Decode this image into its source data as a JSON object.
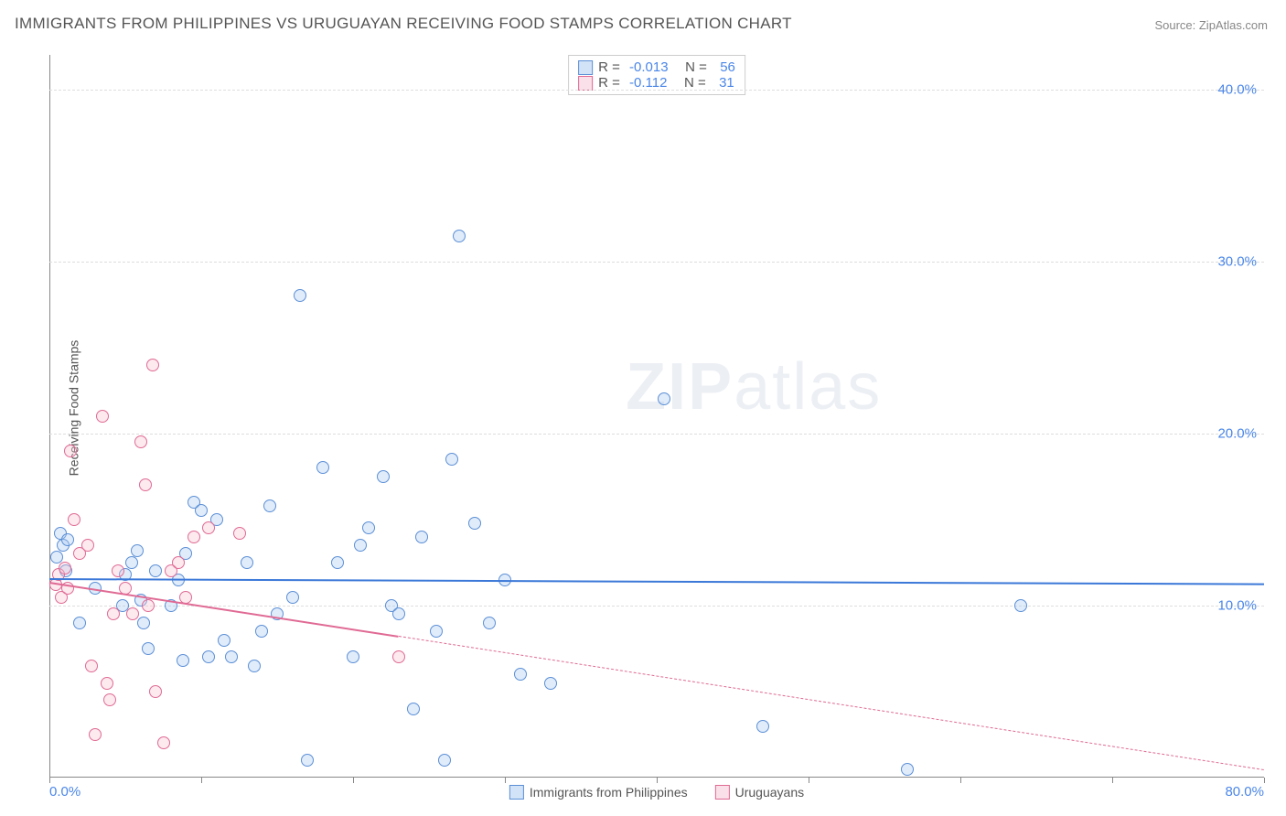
{
  "title": "IMMIGRANTS FROM PHILIPPINES VS URUGUAYAN RECEIVING FOOD STAMPS CORRELATION CHART",
  "source_prefix": "Source: ",
  "source": "ZipAtlas.com",
  "ylabel": "Receiving Food Stamps",
  "watermark_a": "ZIP",
  "watermark_b": "atlas",
  "chart": {
    "type": "scatter",
    "background_color": "#ffffff",
    "grid_color": "#dddddd",
    "axis_color": "#888888",
    "tick_label_color": "#4a86e8",
    "tick_fontsize": 15,
    "xlim": [
      0,
      80
    ],
    "ylim": [
      0,
      42
    ],
    "xticks": [
      0,
      10,
      20,
      30,
      40,
      50,
      60,
      70,
      80
    ],
    "xtick_labels_shown": {
      "0": "0.0%",
      "80": "80.0%"
    },
    "ygrid": [
      10,
      20,
      30,
      40
    ],
    "ytick_labels": [
      "10.0%",
      "20.0%",
      "30.0%",
      "40.0%"
    ],
    "point_radius": 7,
    "point_border_width": 1,
    "point_fill_opacity": 0.35,
    "series": [
      {
        "name": "Immigrants from Philippines",
        "color_fill": "#a8c8f0",
        "color_stroke": "#5b8fd6",
        "R": "-0.013",
        "N": "56",
        "trend": {
          "x0": 0,
          "y0": 11.6,
          "x1": 80,
          "y1": 11.3,
          "solid_until_x": 80,
          "color": "#3b78d8"
        },
        "points": [
          [
            0.5,
            12.8
          ],
          [
            0.7,
            14.2
          ],
          [
            0.9,
            13.5
          ],
          [
            1.1,
            12.0
          ],
          [
            1.2,
            13.8
          ],
          [
            2.0,
            9.0
          ],
          [
            3.0,
            11.0
          ],
          [
            4.8,
            10.0
          ],
          [
            5.0,
            11.8
          ],
          [
            5.4,
            12.5
          ],
          [
            5.8,
            13.2
          ],
          [
            6.0,
            10.3
          ],
          [
            6.2,
            9.0
          ],
          [
            6.5,
            7.5
          ],
          [
            7.0,
            12.0
          ],
          [
            8.0,
            10.0
          ],
          [
            8.5,
            11.5
          ],
          [
            9.0,
            13.0
          ],
          [
            9.5,
            16.0
          ],
          [
            10.0,
            15.5
          ],
          [
            10.5,
            7.0
          ],
          [
            11.0,
            15.0
          ],
          [
            11.5,
            8.0
          ],
          [
            12.0,
            7.0
          ],
          [
            13.0,
            12.5
          ],
          [
            14.0,
            8.5
          ],
          [
            14.5,
            15.8
          ],
          [
            15.0,
            9.5
          ],
          [
            16.0,
            10.5
          ],
          [
            16.5,
            28.0
          ],
          [
            17.0,
            1.0
          ],
          [
            18.0,
            18.0
          ],
          [
            19.0,
            12.5
          ],
          [
            20.0,
            7.0
          ],
          [
            20.5,
            13.5
          ],
          [
            21.0,
            14.5
          ],
          [
            22.0,
            17.5
          ],
          [
            22.5,
            10.0
          ],
          [
            23.0,
            9.5
          ],
          [
            24.0,
            4.0
          ],
          [
            24.5,
            14.0
          ],
          [
            25.5,
            8.5
          ],
          [
            26.0,
            1.0
          ],
          [
            26.5,
            18.5
          ],
          [
            27.0,
            31.5
          ],
          [
            28.0,
            14.8
          ],
          [
            29.0,
            9.0
          ],
          [
            30.0,
            11.5
          ],
          [
            31.0,
            6.0
          ],
          [
            33.0,
            5.5
          ],
          [
            40.5,
            22.0
          ],
          [
            47.0,
            3.0
          ],
          [
            64.0,
            10.0
          ],
          [
            56.5,
            0.5
          ],
          [
            8.8,
            6.8
          ],
          [
            13.5,
            6.5
          ]
        ]
      },
      {
        "name": "Uruguayans",
        "color_fill": "#f5c2d1",
        "color_stroke": "#e06a94",
        "R": "-0.112",
        "N": "31",
        "trend": {
          "x0": 0,
          "y0": 11.4,
          "x1": 80,
          "y1": 0.5,
          "solid_until_x": 23,
          "color": "#e06a94"
        },
        "points": [
          [
            0.4,
            11.2
          ],
          [
            0.6,
            11.8
          ],
          [
            0.8,
            10.5
          ],
          [
            1.0,
            12.2
          ],
          [
            1.2,
            11.0
          ],
          [
            1.4,
            19.0
          ],
          [
            1.6,
            15.0
          ],
          [
            2.0,
            13.0
          ],
          [
            2.5,
            13.5
          ],
          [
            2.8,
            6.5
          ],
          [
            3.0,
            2.5
          ],
          [
            3.5,
            21.0
          ],
          [
            3.8,
            5.5
          ],
          [
            4.0,
            4.5
          ],
          [
            4.2,
            9.5
          ],
          [
            4.5,
            12.0
          ],
          [
            5.0,
            11.0
          ],
          [
            5.5,
            9.5
          ],
          [
            6.0,
            19.5
          ],
          [
            6.3,
            17.0
          ],
          [
            6.5,
            10.0
          ],
          [
            6.8,
            24.0
          ],
          [
            7.0,
            5.0
          ],
          [
            7.5,
            2.0
          ],
          [
            8.0,
            12.0
          ],
          [
            8.5,
            12.5
          ],
          [
            9.0,
            10.5
          ],
          [
            9.5,
            14.0
          ],
          [
            10.5,
            14.5
          ],
          [
            12.5,
            14.2
          ],
          [
            23.0,
            7.0
          ]
        ]
      }
    ],
    "legend_top": {
      "r_label": "R =",
      "n_label": "N ="
    },
    "legend_bottom": [
      {
        "label": "Immigrants from Philippines",
        "fill": "#a8c8f0",
        "stroke": "#5b8fd6"
      },
      {
        "label": "Uruguayans",
        "fill": "#f5c2d1",
        "stroke": "#e06a94"
      }
    ]
  }
}
